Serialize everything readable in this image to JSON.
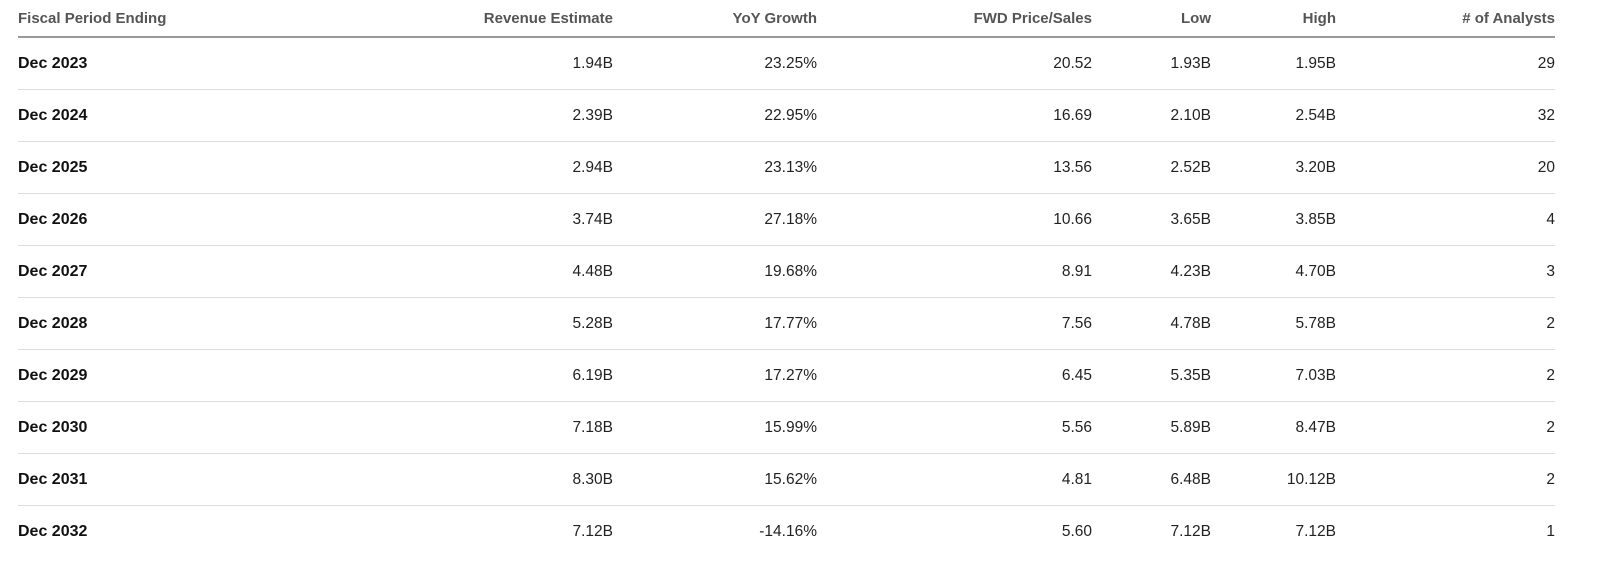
{
  "table": {
    "headers": [
      "Fiscal Period Ending",
      "Revenue Estimate",
      "YoY Growth",
      "FWD Price/Sales",
      "Low",
      "High",
      "# of Analysts"
    ],
    "rows": [
      [
        "Dec 2023",
        "1.94B",
        "23.25%",
        "20.52",
        "1.93B",
        "1.95B",
        "29"
      ],
      [
        "Dec 2024",
        "2.39B",
        "22.95%",
        "16.69",
        "2.10B",
        "2.54B",
        "32"
      ],
      [
        "Dec 2025",
        "2.94B",
        "23.13%",
        "13.56",
        "2.52B",
        "3.20B",
        "20"
      ],
      [
        "Dec 2026",
        "3.74B",
        "27.18%",
        "10.66",
        "3.65B",
        "3.85B",
        "4"
      ],
      [
        "Dec 2027",
        "4.48B",
        "19.68%",
        "8.91",
        "4.23B",
        "4.70B",
        "3"
      ],
      [
        "Dec 2028",
        "5.28B",
        "17.77%",
        "7.56",
        "4.78B",
        "5.78B",
        "2"
      ],
      [
        "Dec 2029",
        "6.19B",
        "17.27%",
        "6.45",
        "5.35B",
        "7.03B",
        "2"
      ],
      [
        "Dec 2030",
        "7.18B",
        "15.99%",
        "5.56",
        "5.89B",
        "8.47B",
        "2"
      ],
      [
        "Dec 2031",
        "8.30B",
        "15.62%",
        "4.81",
        "6.48B",
        "10.12B",
        "2"
      ],
      [
        "Dec 2032",
        "7.12B",
        "-14.16%",
        "5.60",
        "7.12B",
        "7.12B",
        "1"
      ]
    ]
  }
}
